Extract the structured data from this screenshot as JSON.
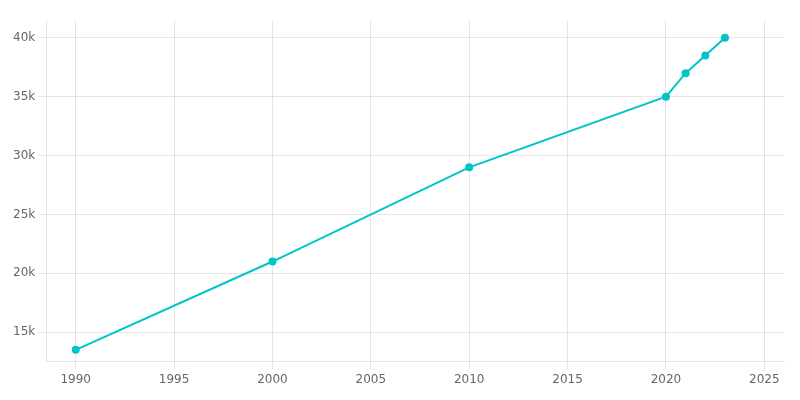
{
  "chart_data": {
    "type": "line",
    "x": [
      1990,
      2000,
      2010,
      2020,
      2021,
      2022,
      2023
    ],
    "values": [
      13500,
      21000,
      29000,
      35000,
      37000,
      38500,
      40000
    ],
    "color": "#00c5c8",
    "marker": "circle",
    "xlim": [
      1988.5,
      2026
    ],
    "ylim": [
      12500,
      41500
    ],
    "xticks": [
      1990,
      1995,
      2000,
      2005,
      2010,
      2015,
      2020,
      2025
    ],
    "yticks": [
      {
        "value": 15000,
        "label": "15k"
      },
      {
        "value": 20000,
        "label": "20k"
      },
      {
        "value": 25000,
        "label": "25k"
      },
      {
        "value": 30000,
        "label": "30k"
      },
      {
        "value": 35000,
        "label": "35k"
      },
      {
        "value": 40000,
        "label": "40k"
      }
    ],
    "grid": true
  }
}
